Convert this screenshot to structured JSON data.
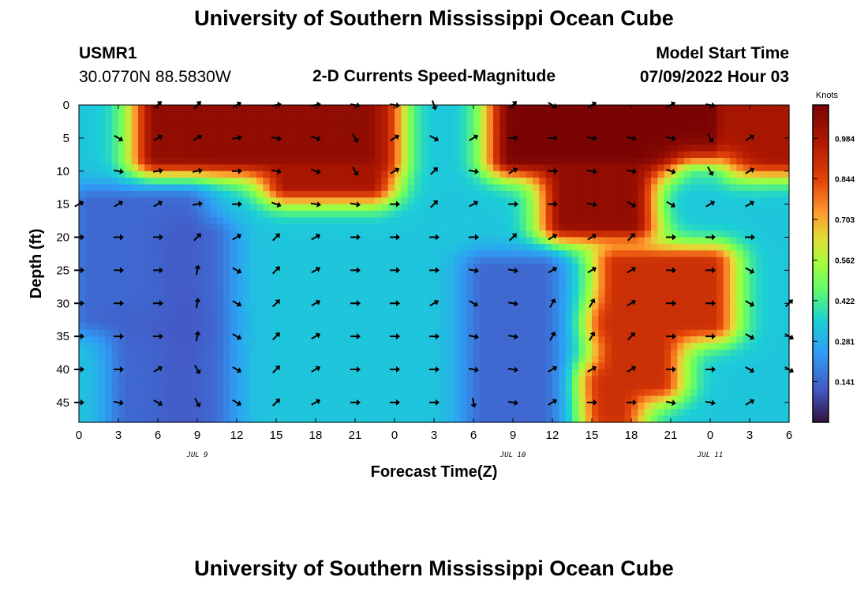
{
  "header": {
    "title": "University of Southern Mississippi Ocean Cube",
    "station_id": "USMR1",
    "coords": "30.0770N  88.5830W",
    "chart_title": "2-D Currents Speed-Magnitude",
    "model_start_label": "Model Start Time",
    "model_start_value": "07/09/2022 Hour 03"
  },
  "footer": {
    "title": "University of Southern Mississippi Ocean Cube"
  },
  "chart_data": {
    "type": "heatmap",
    "xlabel": "Forecast Time(Z)",
    "ylabel": "Depth (ft)",
    "x_tick_labels": [
      "0",
      "3",
      "6",
      "9",
      "12",
      "15",
      "18",
      "21",
      "0",
      "3",
      "6",
      "9",
      "12",
      "15",
      "18",
      "21",
      "0",
      "3",
      "6"
    ],
    "date_labels": [
      {
        "label": "JUL 9",
        "tick_index": 3
      },
      {
        "label": "JUL 10",
        "tick_index": 11
      },
      {
        "label": "JUL 11",
        "tick_index": 16
      }
    ],
    "xlim": [
      0,
      54
    ],
    "ylim": [
      0,
      48
    ],
    "y_ticks": [
      0,
      5,
      10,
      15,
      20,
      25,
      30,
      35,
      40,
      45
    ],
    "colorbar": {
      "title": "Knots",
      "ticks": [
        0.984,
        0.844,
        0.703,
        0.562,
        0.422,
        0.281,
        0.141
      ],
      "range": [
        0,
        1.1
      ]
    },
    "arrow_times": [
      0,
      3,
      6,
      9,
      12,
      15,
      18,
      21,
      24,
      27,
      30,
      33,
      36,
      39,
      42,
      45,
      48,
      51,
      54
    ],
    "arrow_depths": [
      0,
      5,
      10,
      15,
      20,
      25,
      30,
      35,
      40,
      45
    ],
    "arrow_directions_deg": [
      [
        null,
        null,
        45,
        45,
        60,
        80,
        80,
        100,
        100,
        160,
        null,
        45,
        120,
        60,
        null,
        60,
        100,
        null,
        null
      ],
      [
        null,
        120,
        60,
        60,
        80,
        100,
        110,
        150,
        60,
        120,
        60,
        90,
        90,
        100,
        100,
        100,
        150,
        60,
        null
      ],
      [
        null,
        100,
        80,
        80,
        90,
        100,
        110,
        150,
        60,
        45,
        100,
        60,
        90,
        100,
        100,
        110,
        150,
        60,
        null
      ],
      [
        60,
        60,
        60,
        80,
        90,
        110,
        100,
        100,
        90,
        45,
        60,
        90,
        90,
        100,
        120,
        120,
        60,
        60,
        null
      ],
      [
        90,
        90,
        90,
        45,
        60,
        45,
        60,
        90,
        90,
        90,
        90,
        45,
        60,
        60,
        45,
        90,
        90,
        90,
        null
      ],
      [
        90,
        90,
        90,
        10,
        120,
        45,
        60,
        90,
        90,
        90,
        100,
        100,
        60,
        60,
        60,
        90,
        90,
        120,
        null
      ],
      [
        90,
        90,
        90,
        10,
        120,
        45,
        60,
        90,
        90,
        60,
        120,
        100,
        30,
        30,
        60,
        90,
        90,
        120,
        45
      ],
      [
        90,
        90,
        90,
        10,
        120,
        45,
        60,
        90,
        90,
        90,
        100,
        100,
        30,
        30,
        45,
        90,
        90,
        120,
        120
      ],
      [
        90,
        90,
        60,
        150,
        120,
        45,
        60,
        90,
        90,
        90,
        100,
        100,
        60,
        60,
        60,
        90,
        90,
        120,
        120
      ],
      [
        90,
        100,
        120,
        150,
        120,
        45,
        60,
        90,
        90,
        90,
        170,
        100,
        60,
        90,
        90,
        100,
        100,
        60,
        null
      ]
    ]
  }
}
